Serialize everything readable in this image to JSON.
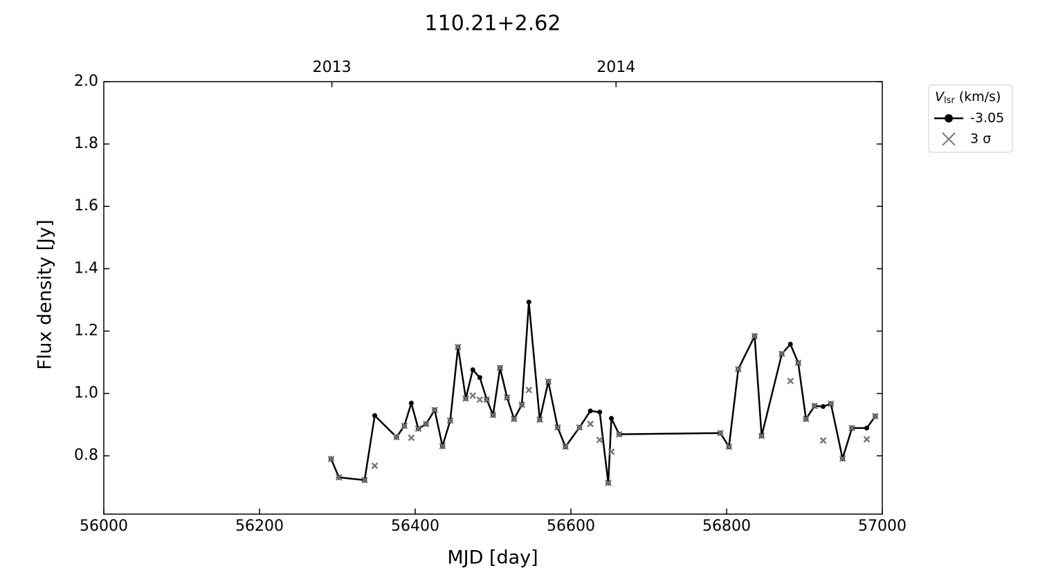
{
  "chart_data": {
    "type": "line",
    "title": "110.21+2.62",
    "x_label": "MJD [day]",
    "y_label": "Flux density [Jy]",
    "xlim": [
      56000,
      57000
    ],
    "xticks": [
      56000,
      56200,
      56400,
      56600,
      56800,
      57000
    ],
    "x2ticks": [
      {
        "value": 56293,
        "label": "2013"
      },
      {
        "value": 56658,
        "label": "2014"
      }
    ],
    "ylim": [
      0.613,
      2.0
    ],
    "yticks": [
      {
        "value": 0.8,
        "label": "0.8"
      },
      {
        "value": 1.0,
        "label": "1.0"
      },
      {
        "value": 1.2,
        "label": "1.2"
      },
      {
        "value": 1.4,
        "label": "1.4"
      },
      {
        "value": 1.6,
        "label": "1.6"
      },
      {
        "value": 1.8,
        "label": "1.8"
      },
      {
        "value": 2.0,
        "label": "2.0"
      }
    ],
    "legend_title": "V",
    "legend_title_sub": "lsr",
    "legend_title_unit": "(km/s)",
    "legend": "upper right outside",
    "x": [
      56292,
      56302,
      56335,
      56348,
      56376,
      56386,
      56395,
      56404,
      56414,
      56425,
      56435,
      56445,
      56455,
      56465,
      56474,
      56483,
      56492,
      56500,
      56509,
      56518,
      56527,
      56537,
      56546,
      56560,
      56571,
      56583,
      56593,
      56611,
      56625,
      56637,
      56648,
      56652,
      56662,
      56792,
      56803,
      56815,
      56836,
      56845,
      56871,
      56882,
      56892,
      56902,
      56913,
      56924,
      56934,
      56949,
      56961,
      56980,
      56991
    ],
    "series": [
      {
        "name": "-3.05",
        "color": "#000000",
        "marker": "circle",
        "values": [
          0.79,
          0.731,
          0.722,
          0.929,
          0.86,
          0.896,
          0.969,
          0.887,
          0.902,
          0.947,
          0.831,
          0.913,
          1.149,
          0.984,
          1.076,
          1.051,
          0.98,
          0.931,
          1.082,
          0.987,
          0.918,
          0.964,
          1.293,
          0.916,
          1.038,
          0.891,
          0.829,
          0.891,
          0.944,
          0.94,
          0.713,
          0.92,
          0.869,
          0.873,
          0.829,
          1.078,
          1.184,
          0.864,
          1.127,
          1.158,
          1.098,
          0.918,
          0.96,
          0.958,
          0.967,
          0.791,
          0.889,
          0.889,
          0.927
        ]
      },
      {
        "name": "3 σ",
        "color": "#777777",
        "marker": "x",
        "values": [
          0.79,
          0.731,
          0.722,
          0.768,
          0.86,
          0.896,
          0.858,
          0.887,
          0.902,
          0.947,
          0.831,
          0.913,
          1.149,
          0.984,
          0.993,
          0.98,
          0.98,
          0.931,
          1.082,
          0.987,
          0.918,
          0.964,
          1.011,
          0.916,
          1.038,
          0.891,
          0.829,
          0.891,
          0.902,
          0.851,
          0.713,
          0.813,
          0.869,
          0.873,
          0.829,
          1.078,
          1.184,
          0.864,
          1.127,
          1.04,
          1.098,
          0.918,
          0.96,
          0.849,
          0.967,
          0.791,
          0.889,
          0.853,
          0.927
        ]
      }
    ]
  }
}
